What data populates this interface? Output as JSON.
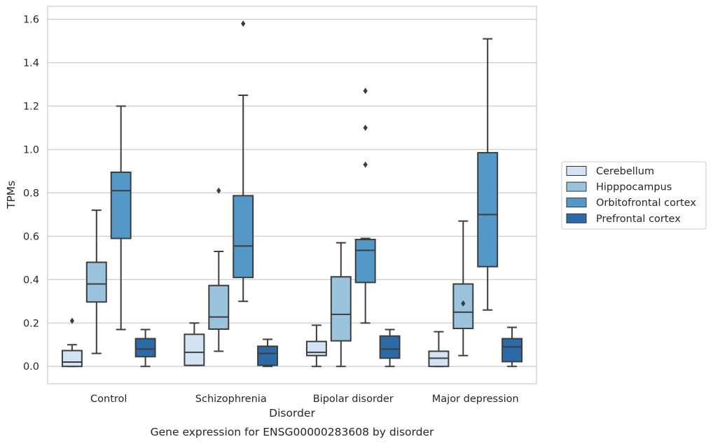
{
  "chart_data": {
    "type": "box",
    "xlabel": "Disorder",
    "ylabel": "TPMs",
    "caption": "Gene expression for ENSG00000283608 by disorder",
    "ylim": [
      -0.08,
      1.66
    ],
    "yticks": [
      "0.0",
      "0.2",
      "0.4",
      "0.6",
      "0.8",
      "1.0",
      "1.2",
      "1.4",
      "1.6"
    ],
    "categories": [
      "Control",
      "Schizophrenia",
      "Bipolar disorder",
      "Major depression"
    ],
    "grid": "horizontal",
    "legend_position": "right",
    "series": [
      {
        "name": "Cerebellum",
        "color": "#d4e3f3",
        "boxes": [
          {
            "whislo": 0.0,
            "q1": 0.0,
            "med": 0.02,
            "q3": 0.073,
            "whishi": 0.1,
            "fliers": [
              0.21
            ]
          },
          {
            "whislo": 0.005,
            "q1": 0.005,
            "med": 0.065,
            "q3": 0.148,
            "whishi": 0.2,
            "fliers": []
          },
          {
            "whislo": 0.0,
            "q1": 0.05,
            "med": 0.065,
            "q3": 0.115,
            "whishi": 0.19,
            "fliers": []
          },
          {
            "whislo": 0.0,
            "q1": 0.0,
            "med": 0.038,
            "q3": 0.07,
            "whishi": 0.16,
            "fliers": []
          }
        ]
      },
      {
        "name": "Hipppocampus",
        "color": "#9ac3de",
        "boxes": [
          {
            "whislo": 0.06,
            "q1": 0.297,
            "med": 0.38,
            "q3": 0.48,
            "whishi": 0.72,
            "fliers": []
          },
          {
            "whislo": 0.07,
            "q1": 0.172,
            "med": 0.228,
            "q3": 0.373,
            "whishi": 0.53,
            "fliers": [
              0.81
            ]
          },
          {
            "whislo": 0.0,
            "q1": 0.118,
            "med": 0.24,
            "q3": 0.413,
            "whishi": 0.57,
            "fliers": []
          },
          {
            "whislo": 0.05,
            "q1": 0.175,
            "med": 0.25,
            "q3": 0.38,
            "whishi": 0.67,
            "fliers": [
              0.29
            ]
          }
        ]
      },
      {
        "name": "Orbitofrontal cortex",
        "color": "#5498c8",
        "boxes": [
          {
            "whislo": 0.17,
            "q1": 0.59,
            "med": 0.81,
            "q3": 0.895,
            "whishi": 1.2,
            "fliers": []
          },
          {
            "whislo": 0.3,
            "q1": 0.41,
            "med": 0.555,
            "q3": 0.787,
            "whishi": 1.25,
            "fliers": [
              1.58
            ]
          },
          {
            "whislo": 0.2,
            "q1": 0.387,
            "med": 0.535,
            "q3": 0.585,
            "whishi": 0.59,
            "fliers": [
              0.93,
              1.1,
              1.27
            ]
          },
          {
            "whislo": 0.26,
            "q1": 0.46,
            "med": 0.7,
            "q3": 0.985,
            "whishi": 1.51,
            "fliers": []
          }
        ]
      },
      {
        "name": "Prefrontal cortex",
        "color": "#2c6ba7",
        "boxes": [
          {
            "whislo": 0.0,
            "q1": 0.045,
            "med": 0.08,
            "q3": 0.128,
            "whishi": 0.17,
            "fliers": []
          },
          {
            "whislo": 0.0,
            "q1": 0.005,
            "med": 0.06,
            "q3": 0.093,
            "whishi": 0.125,
            "fliers": []
          },
          {
            "whislo": 0.0,
            "q1": 0.038,
            "med": 0.08,
            "q3": 0.14,
            "whishi": 0.17,
            "fliers": []
          },
          {
            "whislo": 0.0,
            "q1": 0.022,
            "med": 0.09,
            "q3": 0.128,
            "whishi": 0.18,
            "fliers": []
          }
        ]
      }
    ]
  }
}
